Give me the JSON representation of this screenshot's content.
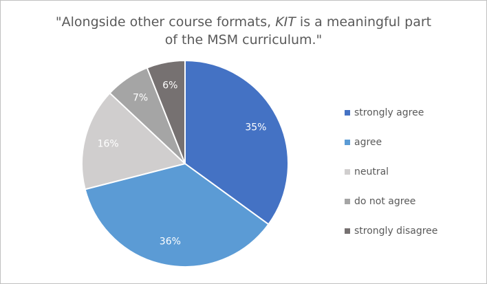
{
  "chart_data": {
    "type": "pie",
    "title_lines": [
      [
        "\"Alongside other course formats, ",
        "KIT",
        " is a meaningful part"
      ],
      [
        "of the MSM curriculum.\""
      ]
    ],
    "categories": [
      "strongly agree",
      "agree",
      "neutral",
      "do not agree",
      "strongly disagree"
    ],
    "values": [
      35,
      36,
      16,
      7,
      6
    ],
    "value_labels": [
      "35%",
      "36%",
      "16%",
      "7%",
      "6%"
    ],
    "colors": [
      "#4472c4",
      "#5b9bd5",
      "#d0cece",
      "#a5a5a5",
      "#767171"
    ],
    "legend": "right"
  }
}
